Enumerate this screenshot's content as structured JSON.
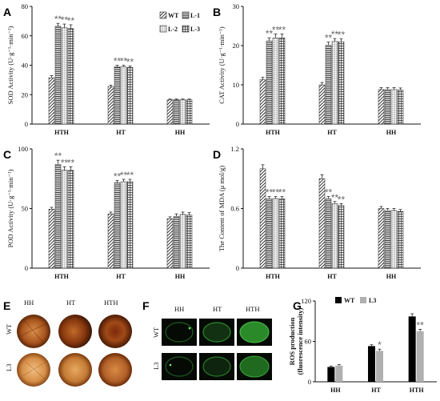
{
  "panel_labels": {
    "a": "A",
    "b": "B",
    "c": "C",
    "d": "D",
    "e": "E",
    "f": "F",
    "g": "G"
  },
  "legend_top": {
    "wt": "WT",
    "l1": "L-1",
    "l2": "L-2",
    "l3": "L-3"
  },
  "legend_g": {
    "wt": "WT",
    "l3": "L3"
  },
  "image_panels": {
    "e": {
      "cols": [
        "HH",
        "HT",
        "HTH"
      ],
      "rows": [
        "WT",
        "L3"
      ]
    },
    "f": {
      "cols": [
        "HH",
        "HT",
        "HTH"
      ],
      "rows": [
        "WT",
        "L3"
      ]
    }
  },
  "colors": {
    "wt_g": "#000000",
    "l3_g": "#b0b0b0",
    "star": "#666666"
  },
  "chart_data": [
    {
      "type": "bar",
      "panel": "A",
      "ylabel": "SOD Activity (U·g⁻¹·min⁻¹)",
      "ylim": [
        0,
        80
      ],
      "yticks": [
        0,
        20,
        40,
        60,
        80
      ],
      "categories": [
        "HTH",
        "HT",
        "HH"
      ],
      "series": [
        {
          "name": "WT",
          "values": [
            31.5,
            25.5,
            16.5
          ]
        },
        {
          "name": "L-1",
          "values": [
            66.5,
            39,
            16.5
          ]
        },
        {
          "name": "L-2",
          "values": [
            65.5,
            39,
            16.5
          ]
        },
        {
          "name": "L-3",
          "values": [
            65,
            38.5,
            16.5
          ]
        }
      ],
      "errors": [
        [
          1.5,
          1,
          0.5
        ],
        [
          2,
          1,
          0.5
        ],
        [
          2.5,
          1,
          0.5
        ],
        [
          2.5,
          1,
          0.5
        ]
      ],
      "annotations": [
        [
          "",
          "**",
          "**",
          "**"
        ],
        [
          "",
          "**",
          "**",
          "**"
        ],
        [
          "",
          "",
          "",
          ""
        ]
      ]
    },
    {
      "type": "bar",
      "panel": "B",
      "ylabel": "CAT Activity (U·g⁻¹·min⁻¹)",
      "ylim": [
        0,
        30
      ],
      "yticks": [
        0,
        10,
        20,
        30
      ],
      "categories": [
        "HTH",
        "HT",
        "HH"
      ],
      "series": [
        {
          "name": "WT",
          "values": [
            11.3,
            10,
            8.8
          ]
        },
        {
          "name": "L-1",
          "values": [
            21.2,
            20.1,
            8.8
          ]
        },
        {
          "name": "L-2",
          "values": [
            22,
            21.1,
            8.8
          ]
        },
        {
          "name": "L-3",
          "values": [
            22,
            21,
            8.7
          ]
        }
      ],
      "errors": [
        [
          0.6,
          0.6,
          0.5
        ],
        [
          0.8,
          0.8,
          0.5
        ],
        [
          1,
          0.7,
          0.5
        ],
        [
          1,
          0.7,
          0.5
        ]
      ],
      "annotations": [
        [
          "",
          "**",
          "**",
          "**"
        ],
        [
          "",
          "**",
          "**",
          "**"
        ],
        [
          "",
          "",
          "",
          ""
        ]
      ]
    },
    {
      "type": "bar",
      "panel": "C",
      "ylabel": "POD Activity (U·g⁻¹·min⁻¹)",
      "ylim": [
        0,
        100
      ],
      "yticks": [
        0,
        50,
        100
      ],
      "categories": [
        "HTH",
        "HT",
        "HH"
      ],
      "series": [
        {
          "name": "WT",
          "values": [
            49.5,
            45.5,
            41.5
          ]
        },
        {
          "name": "L-1",
          "values": [
            87,
            71.5,
            43.5
          ]
        },
        {
          "name": "L-2",
          "values": [
            82,
            72.5,
            45
          ]
        },
        {
          "name": "L-3",
          "values": [
            82,
            72.5,
            44.5
          ]
        }
      ],
      "errors": [
        [
          1.5,
          1.5,
          1.5
        ],
        [
          3.5,
          2,
          2
        ],
        [
          3,
          2,
          2
        ],
        [
          3,
          2,
          2
        ]
      ],
      "annotations": [
        [
          "",
          "**",
          "**",
          "**"
        ],
        [
          "",
          "**",
          "**",
          "**"
        ],
        [
          "",
          "",
          "",
          ""
        ]
      ]
    },
    {
      "type": "bar",
      "panel": "D",
      "ylabel": "The Content of MDA (μ mol/g)",
      "ylim": [
        0,
        1.2
      ],
      "yticks": [
        0,
        0.6,
        1.2
      ],
      "categories": [
        "HTH",
        "HT",
        "HH"
      ],
      "series": [
        {
          "name": "WT",
          "values": [
            1.0,
            0.9,
            0.6
          ]
        },
        {
          "name": "L-1",
          "values": [
            0.7,
            0.7,
            0.58
          ]
        },
        {
          "name": "L-2",
          "values": [
            0.7,
            0.65,
            0.58
          ]
        },
        {
          "name": "L-3",
          "values": [
            0.7,
            0.63,
            0.57
          ]
        }
      ],
      "errors": [
        [
          0.04,
          0.04,
          0.02
        ],
        [
          0.02,
          0.02,
          0.02
        ],
        [
          0.02,
          0.02,
          0.02
        ],
        [
          0.02,
          0.02,
          0.02
        ]
      ],
      "annotations": [
        [
          "",
          "**",
          "**",
          "**"
        ],
        [
          "",
          "**",
          "**",
          "**"
        ],
        [
          "",
          "",
          "",
          ""
        ]
      ]
    },
    {
      "type": "bar",
      "panel": "G",
      "ylabel": "ROS production (fluorescence intensity)",
      "ylim": [
        0,
        120
      ],
      "yticks": [
        0,
        60,
        120
      ],
      "categories": [
        "HH",
        "HT",
        "HTH"
      ],
      "series": [
        {
          "name": "WT",
          "values": [
            22,
            53,
            97
          ]
        },
        {
          "name": "L3",
          "values": [
            24,
            46,
            75
          ]
        }
      ],
      "errors": [
        [
          1.5,
          2,
          4
        ],
        [
          1.5,
          2.5,
          3
        ]
      ],
      "annotations": [
        [
          "",
          ""
        ],
        [
          "",
          "*"
        ],
        [
          "",
          "**"
        ]
      ]
    }
  ]
}
